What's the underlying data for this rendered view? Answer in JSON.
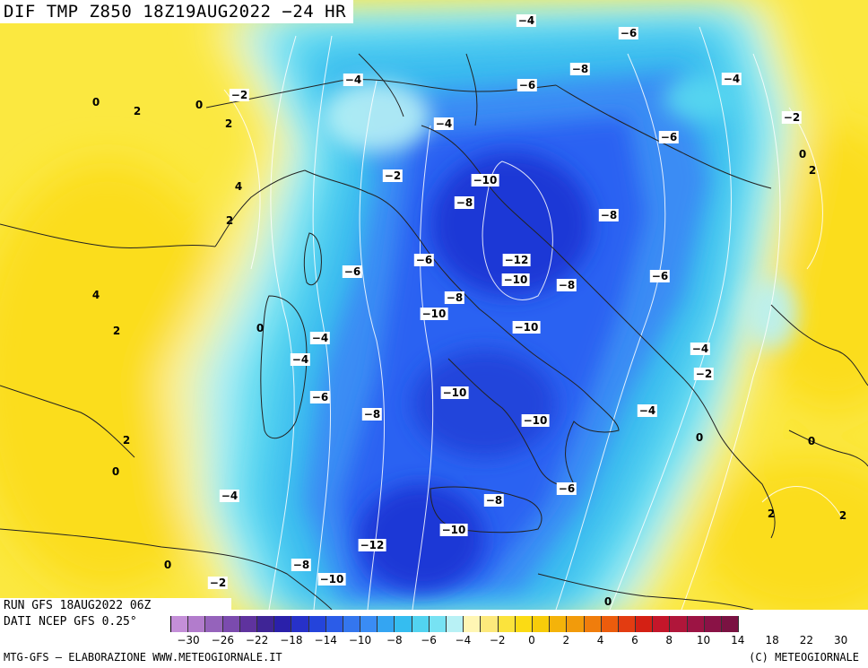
{
  "title": "DIF TMP Z850 18Z19AUG2022 −24 HR",
  "run_line": "RUN GFS 18AUG2022 06Z",
  "source_line": "DATI NCEP GFS 0.25°",
  "footer_left": "MTG-GFS – ELABORAZIONE WWW.METEOGIORNALE.IT",
  "footer_right": "(C) METEOGIORNALE",
  "colors": {
    "cold_deep": "#1f38d6",
    "cold_mid": "#2b62f2",
    "cold": "#3a8cf4",
    "cool": "#38b8ef",
    "cool_light": "#59d8f0",
    "pale": "#b8f1f5",
    "warm_light": "#fdf3a0",
    "warm": "#fbe840",
    "warm_mid": "#fbdd1a",
    "border": "#222222",
    "contour": "#ffffff"
  },
  "colorbar": {
    "colors": [
      "#c48fd8",
      "#b27ccc",
      "#9563bb",
      "#7b4bae",
      "#5f339e",
      "#3f2596",
      "#2a20aa",
      "#2731c9",
      "#2444db",
      "#2b5ce8",
      "#3476ee",
      "#3a8cf4",
      "#34a5f2",
      "#35bdf0",
      "#52d3f0",
      "#77e2f3",
      "#b8f1f5",
      "#fff6b4",
      "#fde97c",
      "#fbe33c",
      "#fbdb14",
      "#f7cc0a",
      "#f4b30a",
      "#f29b0b",
      "#f07d0c",
      "#ec5c0d",
      "#e33c11",
      "#d42014",
      "#c4162a",
      "#b0163a",
      "#9c1444",
      "#8a1246",
      "#7a1242"
    ],
    "tick_labels": [
      "−30",
      "−26",
      "−22",
      "−18",
      "−14",
      "−10",
      "−8",
      "−6",
      "−4",
      "−2",
      "0",
      "2",
      "4",
      "6",
      "8",
      "10",
      "14",
      "18",
      "22",
      "30"
    ]
  },
  "contour_labels": [
    {
      "text": "−4",
      "boxed": true
    },
    {
      "text": "−6",
      "boxed": true
    },
    {
      "text": "−4",
      "boxed": true
    },
    {
      "text": "−8",
      "boxed": true
    },
    {
      "text": "−6",
      "boxed": true
    },
    {
      "text": "−4",
      "boxed": true
    },
    {
      "text": "−2",
      "boxed": true
    },
    {
      "text": "0",
      "boxed": false
    },
    {
      "text": "2",
      "boxed": false
    },
    {
      "text": "0",
      "boxed": false
    },
    {
      "text": "2",
      "boxed": false
    },
    {
      "text": "−2",
      "boxed": true
    },
    {
      "text": "−4",
      "boxed": true
    },
    {
      "text": "−6",
      "boxed": true
    },
    {
      "text": "0",
      "boxed": false
    },
    {
      "text": "2",
      "boxed": false
    },
    {
      "text": "4",
      "boxed": false
    },
    {
      "text": "2",
      "boxed": false
    },
    {
      "text": "−2",
      "boxed": true
    },
    {
      "text": "−10",
      "boxed": true
    },
    {
      "text": "−8",
      "boxed": true
    },
    {
      "text": "−8",
      "boxed": true
    },
    {
      "text": "−6",
      "boxed": true
    },
    {
      "text": "−12",
      "boxed": true
    },
    {
      "text": "−10",
      "boxed": true
    },
    {
      "text": "−8",
      "boxed": true
    },
    {
      "text": "−6",
      "boxed": true
    },
    {
      "text": "4",
      "boxed": false
    },
    {
      "text": "−6",
      "boxed": true
    },
    {
      "text": "−8",
      "boxed": true
    },
    {
      "text": "−10",
      "boxed": true
    },
    {
      "text": "−10",
      "boxed": true
    },
    {
      "text": "2",
      "boxed": false
    },
    {
      "text": "0",
      "boxed": false
    },
    {
      "text": "−4",
      "boxed": true
    },
    {
      "text": "−4",
      "boxed": true
    },
    {
      "text": "−4",
      "boxed": true
    },
    {
      "text": "−2",
      "boxed": true
    },
    {
      "text": "−6",
      "boxed": true
    },
    {
      "text": "−8",
      "boxed": true
    },
    {
      "text": "−10",
      "boxed": true
    },
    {
      "text": "−10",
      "boxed": true
    },
    {
      "text": "−4",
      "boxed": true
    },
    {
      "text": "0",
      "boxed": false
    },
    {
      "text": "0",
      "boxed": false
    },
    {
      "text": "2",
      "boxed": false
    },
    {
      "text": "0",
      "boxed": false
    },
    {
      "text": "−4",
      "boxed": true
    },
    {
      "text": "−8",
      "boxed": true
    },
    {
      "text": "−6",
      "boxed": true
    },
    {
      "text": "−10",
      "boxed": true
    },
    {
      "text": "2",
      "boxed": false
    },
    {
      "text": "2",
      "boxed": false
    },
    {
      "text": "0",
      "boxed": false
    },
    {
      "text": "−12",
      "boxed": true
    },
    {
      "text": "−8",
      "boxed": true
    },
    {
      "text": "−10",
      "boxed": true
    },
    {
      "text": "−2",
      "boxed": true
    },
    {
      "text": "0",
      "boxed": false
    }
  ]
}
